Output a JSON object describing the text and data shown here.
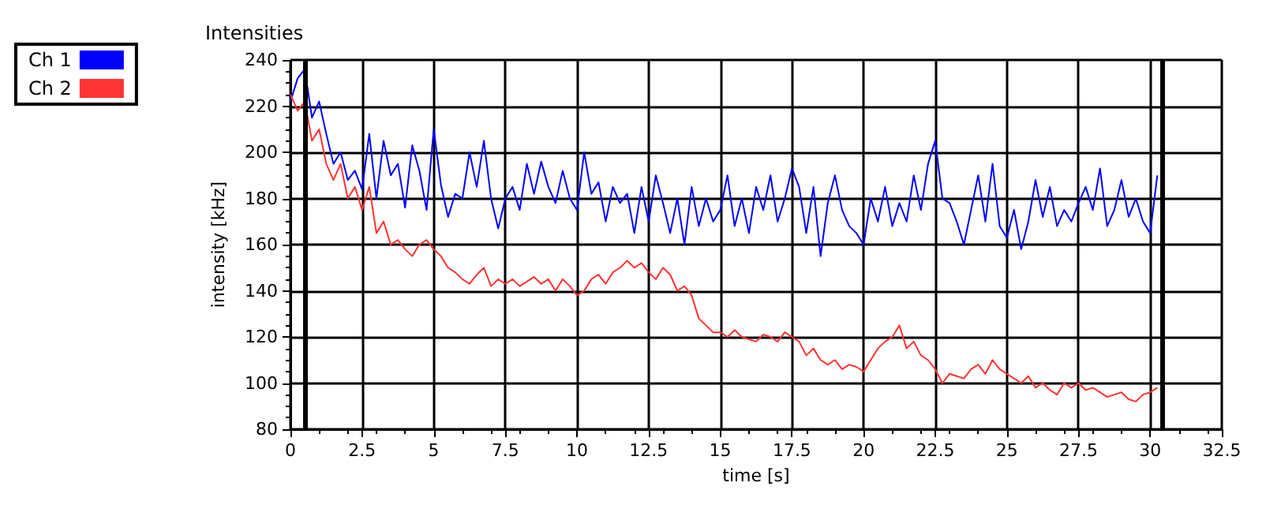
{
  "chart_data": {
    "type": "line",
    "title": "Intensities",
    "xlabel": "time [s]",
    "ylabel": "intensity [kHz]",
    "x": [
      0,
      0.25,
      0.5,
      0.75,
      1,
      1.25,
      1.5,
      1.75,
      2,
      2.25,
      2.5,
      2.75,
      3,
      3.25,
      3.5,
      3.75,
      4,
      4.25,
      4.5,
      4.75,
      5,
      5.25,
      5.5,
      5.75,
      6,
      6.25,
      6.5,
      6.75,
      7,
      7.25,
      7.5,
      7.75,
      8,
      8.25,
      8.5,
      8.75,
      9,
      9.25,
      9.5,
      9.75,
      10,
      10.25,
      10.5,
      10.75,
      11,
      11.25,
      11.5,
      11.75,
      12,
      12.25,
      12.5,
      12.75,
      13,
      13.25,
      13.5,
      13.75,
      14,
      14.25,
      14.5,
      14.75,
      15,
      15.25,
      15.5,
      15.75,
      16,
      16.25,
      16.5,
      16.75,
      17,
      17.25,
      17.5,
      17.75,
      18,
      18.25,
      18.5,
      18.75,
      19,
      19.25,
      19.5,
      19.75,
      20,
      20.25,
      20.5,
      20.75,
      21,
      21.25,
      21.5,
      21.75,
      22,
      22.25,
      22.5,
      22.75,
      23,
      23.25,
      23.5,
      23.75,
      24,
      24.25,
      24.5,
      24.75,
      25,
      25.25,
      25.5,
      25.75,
      26,
      26.25,
      26.5,
      26.75,
      27,
      27.25,
      27.5,
      27.75,
      28,
      28.25,
      28.5,
      28.75,
      29,
      29.25,
      29.5,
      29.75,
      30,
      30.25
    ],
    "series": [
      {
        "name": "Ch 1",
        "color": "#0000ff",
        "values": [
          222,
          232,
          236,
          215,
          222,
          208,
          195,
          200,
          188,
          192,
          184,
          208,
          180,
          205,
          190,
          195,
          176,
          203,
          192,
          175,
          210,
          186,
          172,
          182,
          180,
          200,
          185,
          205,
          180,
          167,
          180,
          185,
          175,
          195,
          182,
          196,
          185,
          178,
          192,
          180,
          175,
          200,
          182,
          187,
          170,
          185,
          178,
          182,
          165,
          185,
          170,
          190,
          178,
          165,
          180,
          160,
          185,
          168,
          180,
          170,
          175,
          190,
          168,
          180,
          165,
          185,
          175,
          190,
          170,
          180,
          193,
          185,
          165,
          185,
          155,
          178,
          190,
          175,
          168,
          165,
          160,
          180,
          170,
          185,
          168,
          178,
          170,
          190,
          175,
          195,
          205,
          180,
          178,
          170,
          160,
          175,
          190,
          170,
          195,
          168,
          163,
          175,
          158,
          170,
          188,
          172,
          185,
          168,
          175,
          170,
          178,
          185,
          175,
          193,
          168,
          175,
          188,
          172,
          180,
          170,
          165,
          190
        ]
      },
      {
        "name": "Ch 2",
        "color": "#ff3333",
        "values": [
          225,
          218,
          222,
          205,
          210,
          195,
          188,
          195,
          180,
          185,
          175,
          185,
          165,
          170,
          160,
          162,
          158,
          155,
          160,
          162,
          158,
          155,
          150,
          148,
          145,
          143,
          147,
          150,
          142,
          145,
          143,
          145,
          142,
          144,
          146,
          143,
          145,
          140,
          145,
          142,
          138,
          140,
          145,
          147,
          143,
          148,
          150,
          153,
          150,
          152,
          148,
          145,
          150,
          147,
          140,
          142,
          138,
          128,
          125,
          122,
          122,
          120,
          123,
          120,
          119,
          118,
          121,
          120,
          118,
          122,
          120,
          118,
          112,
          115,
          110,
          108,
          110,
          106,
          108,
          107,
          105,
          110,
          115,
          118,
          120,
          125,
          115,
          118,
          112,
          110,
          106,
          100,
          104,
          103,
          102,
          106,
          108,
          104,
          110,
          106,
          104,
          102,
          100,
          103,
          98,
          100,
          97,
          95,
          100,
          98,
          100,
          97,
          98,
          96,
          94,
          95,
          96,
          93,
          92,
          95,
          96,
          98
        ]
      }
    ],
    "xlim": [
      0,
      32.5
    ],
    "xticks": [
      0,
      2.5,
      5,
      7.5,
      10,
      12.5,
      15,
      17.5,
      20,
      22.5,
      25,
      27.5,
      30,
      32.5
    ],
    "ylim": [
      80,
      240
    ],
    "yticks": [
      80,
      100,
      120,
      140,
      160,
      180,
      200,
      220,
      240
    ],
    "ref_lines": [
      {
        "axis": "x",
        "value": 0.5,
        "color": "#000000"
      },
      {
        "axis": "x",
        "value": 30.4,
        "color": "#000000"
      }
    ],
    "grid": true,
    "legend": "top left",
    "marker": "none",
    "line_style": "solid"
  }
}
